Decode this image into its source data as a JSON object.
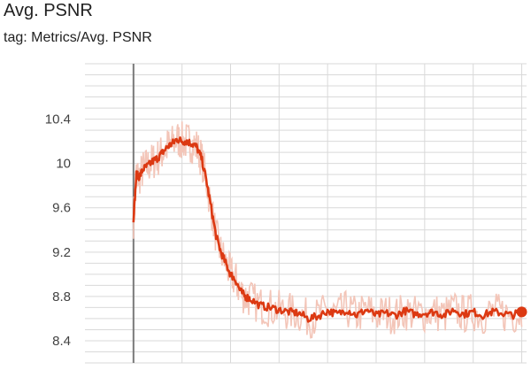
{
  "card": {
    "title": "Avg. PSNR",
    "tag": "tag: Metrics/Avg. PSNR"
  },
  "colors": {
    "series": "#dc3912",
    "series_raw": "#f3c5b8",
    "grid": "#d9d9d9",
    "zero_axis": "#7a7a7a",
    "text": "#212121"
  },
  "chart_data": {
    "type": "line",
    "title": "Avg. PSNR",
    "xlabel": "",
    "ylabel": "",
    "ylim": [
      8.2,
      10.9
    ],
    "xlim": [
      -0.5,
      4.05
    ],
    "y_ticks": [
      8.4,
      8.8,
      9.2,
      9.6,
      10,
      10.4
    ],
    "y_tick_labels": [
      "8.4",
      "8.8",
      "9.2",
      "9.6",
      "10",
      "10.4"
    ],
    "x_gridlines": [
      0,
      0.5,
      1,
      1.5,
      2,
      2.5,
      3,
      3.5,
      4
    ],
    "grid": true,
    "series": [
      {
        "values_smoothed": [
          [
            0.0,
            9.5
          ],
          [
            0.03,
            9.9
          ],
          [
            0.06,
            9.88
          ],
          [
            0.1,
            9.95
          ],
          [
            0.15,
            9.98
          ],
          [
            0.2,
            10.02
          ],
          [
            0.25,
            10.05
          ],
          [
            0.3,
            10.1
          ],
          [
            0.35,
            10.15
          ],
          [
            0.4,
            10.18
          ],
          [
            0.45,
            10.22
          ],
          [
            0.5,
            10.2
          ],
          [
            0.55,
            10.2
          ],
          [
            0.6,
            10.18
          ],
          [
            0.65,
            10.15
          ],
          [
            0.7,
            10.05
          ],
          [
            0.75,
            9.85
          ],
          [
            0.8,
            9.6
          ],
          [
            0.85,
            9.35
          ],
          [
            0.9,
            9.2
          ],
          [
            0.95,
            9.1
          ],
          [
            1.0,
            9.0
          ],
          [
            1.05,
            8.95
          ],
          [
            1.1,
            8.85
          ],
          [
            1.15,
            8.8
          ],
          [
            1.2,
            8.78
          ],
          [
            1.3,
            8.72
          ],
          [
            1.4,
            8.7
          ],
          [
            1.5,
            8.68
          ],
          [
            1.6,
            8.66
          ],
          [
            1.7,
            8.65
          ],
          [
            1.8,
            8.6
          ],
          [
            1.9,
            8.62
          ],
          [
            2.0,
            8.67
          ],
          [
            2.1,
            8.64
          ],
          [
            2.2,
            8.68
          ],
          [
            2.3,
            8.63
          ],
          [
            2.4,
            8.68
          ],
          [
            2.5,
            8.63
          ],
          [
            2.6,
            8.65
          ],
          [
            2.7,
            8.63
          ],
          [
            2.8,
            8.67
          ],
          [
            2.9,
            8.64
          ],
          [
            3.0,
            8.65
          ],
          [
            3.1,
            8.66
          ],
          [
            3.2,
            8.63
          ],
          [
            3.3,
            8.68
          ],
          [
            3.4,
            8.64
          ],
          [
            3.5,
            8.66
          ],
          [
            3.6,
            8.63
          ],
          [
            3.7,
            8.66
          ],
          [
            3.8,
            8.65
          ],
          [
            3.9,
            8.63
          ],
          [
            4.0,
            8.66
          ]
        ],
        "raw_spread": 0.18,
        "end_marker": [
          4.0,
          8.66
        ]
      }
    ]
  }
}
